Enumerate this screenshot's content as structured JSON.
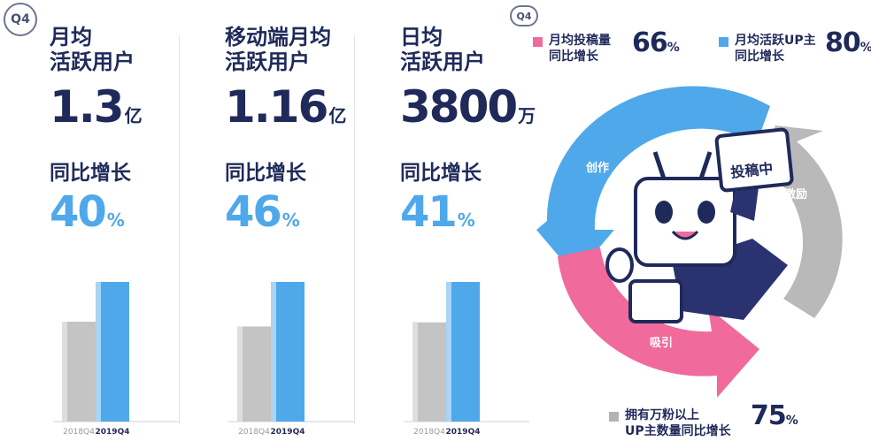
{
  "badges": {
    "left": "Q4",
    "right": "Q4"
  },
  "panels": [
    {
      "label_line1": "月均",
      "label_line2": "活跃用户",
      "value": "1.3",
      "unit": "亿",
      "growth_label": "同比增长",
      "growth_value": "40",
      "growth_unit": "%"
    },
    {
      "label_line1": "移动端月均",
      "label_line2": "活跃用户",
      "value": "1.16",
      "unit": "亿",
      "growth_label": "同比增长",
      "growth_value": "46",
      "growth_unit": "%"
    },
    {
      "label_line1": "日均",
      "label_line2": "活跃用户",
      "value": "3800",
      "unit": "万",
      "growth_label": "同比增长",
      "growth_value": "41",
      "growth_unit": "%"
    }
  ],
  "right": {
    "legend": [
      {
        "line1": "月均投稿量",
        "line2": "同比增长",
        "value": "66",
        "unit": "%",
        "color": "#f06a9c"
      },
      {
        "line1": "月均活跃UP主",
        "line2": "同比增长",
        "value": "80",
        "unit": "%",
        "color": "#4fa8ea"
      },
      {
        "line1": "拥有万粉以上",
        "line2": "UP主数量同比增长",
        "value": "75",
        "unit": "%",
        "color": "#b3b3b3"
      }
    ],
    "cycle_labels": {
      "create": "创作",
      "motivate": "激励",
      "attract": "吸引"
    },
    "mascot_sign": "投稿中"
  },
  "chart_data": [
    {
      "type": "bar",
      "categories": [
        "2018Q4",
        "2019Q4"
      ],
      "values": [
        0.93,
        1.3
      ],
      "colors": [
        "#c4c4c4",
        "#4fa8ea"
      ]
    },
    {
      "type": "bar",
      "categories": [
        "2018Q4",
        "2019Q4"
      ],
      "values": [
        0.79,
        1.16
      ],
      "colors": [
        "#c4c4c4",
        "#4fa8ea"
      ]
    },
    {
      "type": "bar",
      "categories": [
        "2018Q4",
        "2019Q4"
      ],
      "values": [
        2700,
        3800
      ],
      "colors": [
        "#c4c4c4",
        "#4fa8ea"
      ]
    }
  ]
}
